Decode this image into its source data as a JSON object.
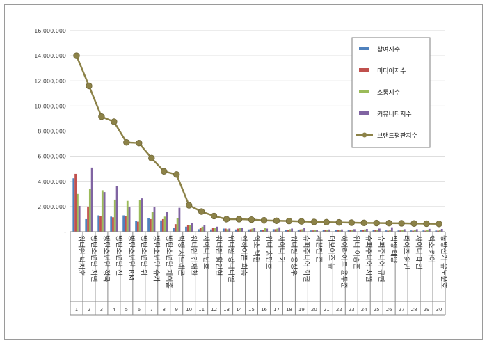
{
  "chart_data": {
    "type": "bar",
    "title": "",
    "xlabel": "",
    "ylabel": "",
    "ylim": [
      0,
      16000000
    ],
    "yticks": [
      "-",
      "2,000,000",
      "4,000,000",
      "6,000,000",
      "8,000,000",
      "10,000,000",
      "12,000,000",
      "14,000,000",
      "16,000,000"
    ],
    "grid": true,
    "legend_position": "top-right",
    "categories": [
      "워너원 박지훈",
      "방탄소년단 지민",
      "방탄소년단 정국",
      "방탄소년단 진",
      "방탄소년단 RM",
      "방탄소년단 뷔",
      "방탄소년단 슈가",
      "방탄소년단 제이홉",
      "빅뱅 지드래곤",
      "워너원 김재환",
      "샤이니 민호",
      "워너원 황민현",
      "워너원 강다니엘",
      "엔하이픈 희승",
      "엑소 백현",
      "위너 송민호",
      "샤이니 키",
      "워너원 옹성우",
      "슈퍼주니어 희철",
      "세븐틴 준",
      "더보이즈 뉴",
      "하이라이트 윤두준",
      "위너 이승훈",
      "슈퍼주니어 시원",
      "슈퍼주니어 규현",
      "빅뱅 태양",
      "라이즈 원빈",
      "샤이니 태민",
      "엑소 카이",
      "동방신기 유노윤호"
    ],
    "ranks": [
      "1",
      "2",
      "3",
      "4",
      "5",
      "6",
      "7",
      "8",
      "9",
      "10",
      "11",
      "12",
      "13",
      "14",
      "15",
      "16",
      "17",
      "18",
      "19",
      "20",
      "21",
      "22",
      "23",
      "24",
      "25",
      "26",
      "27",
      "28",
      "29",
      "30"
    ],
    "series": [
      {
        "name": "참여지수",
        "type": "bar",
        "color": "#4f81bd",
        "values": [
          4250000,
          1000000,
          1300000,
          1200000,
          1300000,
          850000,
          1050000,
          900000,
          300000,
          400000,
          200000,
          180000,
          250000,
          180000,
          180000,
          160000,
          200000,
          150000,
          150000,
          100000,
          130000,
          130000,
          120000,
          120000,
          120000,
          100000,
          100000,
          100000,
          100000,
          90000
        ]
      },
      {
        "name": "미디어지수",
        "type": "bar",
        "color": "#c0504d",
        "values": [
          4600000,
          2000000,
          1250000,
          1150000,
          1250000,
          800000,
          1000000,
          1000000,
          600000,
          500000,
          300000,
          300000,
          250000,
          250000,
          200000,
          150000,
          200000,
          150000,
          180000,
          100000,
          130000,
          120000,
          120000,
          150000,
          130000,
          80000,
          100000,
          80000,
          80000,
          80000
        ]
      },
      {
        "name": "소통지수",
        "type": "bar",
        "color": "#9bbb59",
        "values": [
          3000000,
          3400000,
          3300000,
          2550000,
          2450000,
          2500000,
          1600000,
          1200000,
          1100000,
          500000,
          400000,
          300000,
          200000,
          300000,
          250000,
          300000,
          250000,
          200000,
          200000,
          150000,
          150000,
          150000,
          150000,
          180000,
          150000,
          150000,
          150000,
          150000,
          150000,
          150000
        ]
      },
      {
        "name": "커뮤니티지수",
        "type": "bar",
        "color": "#8064a2",
        "values": [
          2050000,
          5100000,
          3150000,
          3650000,
          1950000,
          2650000,
          1950000,
          1600000,
          1900000,
          700000,
          500000,
          400000,
          250000,
          300000,
          300000,
          250000,
          350000,
          250000,
          300000,
          150000,
          180000,
          180000,
          200000,
          220000,
          250000,
          350000,
          200000,
          200000,
          230000,
          220000
        ]
      },
      {
        "name": "브랜드평판지수",
        "type": "line",
        "color": "#8c8248",
        "values": [
          14000000,
          11600000,
          9150000,
          8750000,
          7100000,
          7050000,
          5850000,
          4800000,
          4550000,
          2100000,
          1600000,
          1250000,
          1000000,
          1000000,
          960000,
          900000,
          870000,
          850000,
          820000,
          780000,
          760000,
          740000,
          720000,
          700000,
          690000,
          680000,
          670000,
          650000,
          640000,
          620000
        ]
      }
    ]
  }
}
